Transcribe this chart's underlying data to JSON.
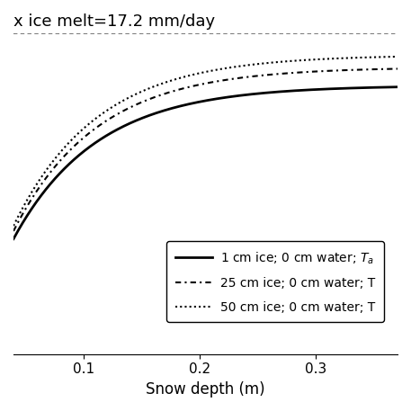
{
  "title": "x ice melt=17.2 mm/day",
  "xlabel": "Snow depth (m)",
  "xlim": [
    0.04,
    0.37
  ],
  "ylim": [
    0.0,
    1.05
  ],
  "x_ticks": [
    0.1,
    0.2,
    0.3
  ],
  "background_color": "#ffffff",
  "title_fontsize": 13,
  "label_fontsize": 12,
  "tick_fontsize": 11,
  "legend_fontsize": 10,
  "curves": [
    {
      "b": 14.0,
      "scale": 0.88,
      "lw": 2.0,
      "ls_type": "solid"
    },
    {
      "b": 14.0,
      "scale": 0.94,
      "lw": 1.5,
      "ls_type": "loose_dot"
    },
    {
      "b": 14.0,
      "scale": 0.98,
      "lw": 1.5,
      "ls_type": "dense_dot"
    }
  ],
  "legend_labels": [
    "1 cm ice; 0 cm water; $T_a$",
    "25 cm ice; 0 cm water; T",
    "50 cm ice; 0 cm water; T"
  ]
}
